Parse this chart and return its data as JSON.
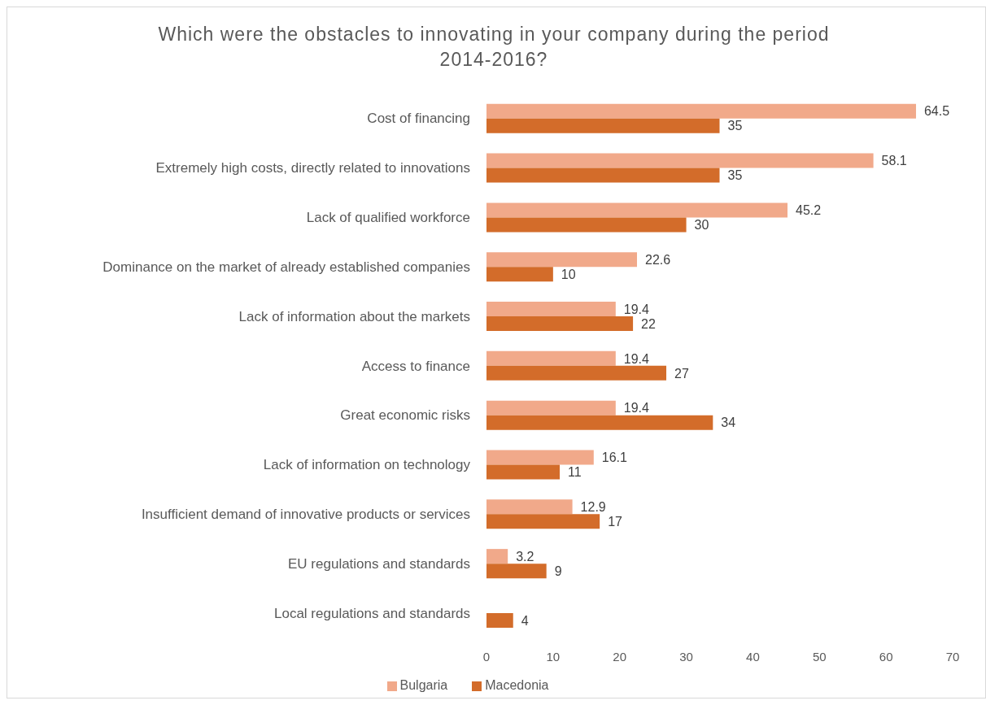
{
  "chart_data": {
    "type": "bar",
    "orientation": "horizontal",
    "title": "Which were the obstacles to innovating in your company during the period 2014-2016?",
    "categories": [
      "Cost of financing",
      "Extremely high costs, directly related to innovations",
      "Lack of qualified workforce",
      "Dominance on the market of already established companies",
      "Lack of information about the markets",
      "Access to finance",
      "Great economic risks",
      "Lack of information on technology",
      "Insufficient demand of innovative products or services",
      "EU regulations and standards",
      "Local regulations and standards"
    ],
    "series": [
      {
        "name": "Bulgaria",
        "color": "#f1a98a",
        "values": [
          64.5,
          58.1,
          45.2,
          22.6,
          19.4,
          19.4,
          19.4,
          16.1,
          12.9,
          3.2,
          null
        ]
      },
      {
        "name": "Macedonia",
        "color": "#d36c2a",
        "values": [
          35,
          35,
          30,
          10,
          22,
          27,
          34,
          11,
          17,
          9,
          4
        ]
      }
    ],
    "xlim": [
      0,
      70
    ],
    "xticks": [
      0,
      10,
      20,
      30,
      40,
      50,
      60,
      70
    ],
    "data_labels": true,
    "legend": "bottom"
  }
}
